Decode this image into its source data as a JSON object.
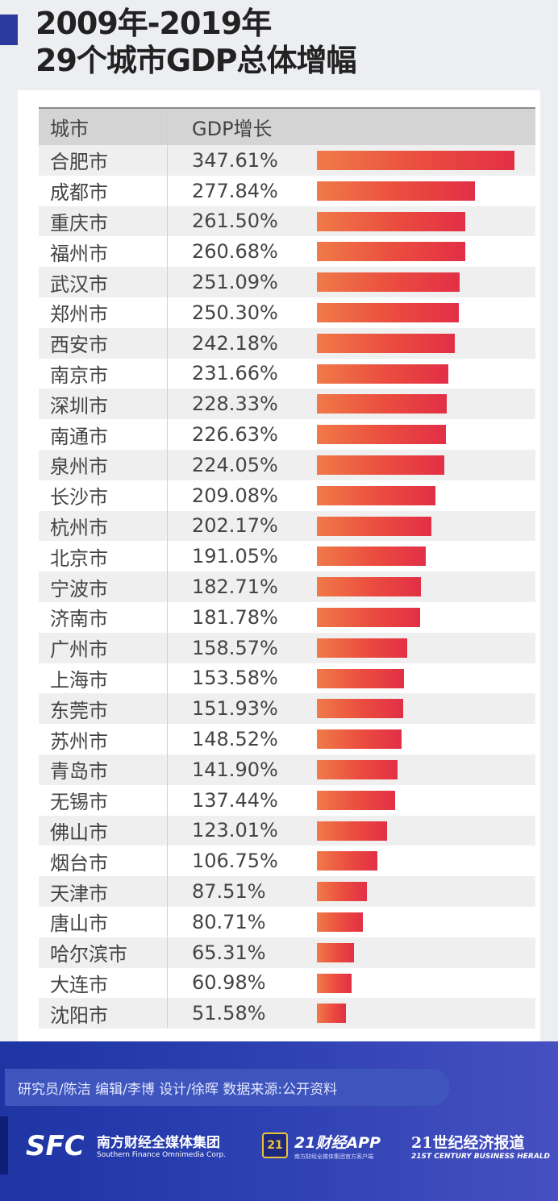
{
  "title": {
    "line1": "2009年-2019年",
    "line2": "29个城市GDP总体增幅"
  },
  "table": {
    "col_city": "城市",
    "col_growth": "GDP增长"
  },
  "chart_data": {
    "type": "bar",
    "title": "2009年-2019年 29个城市GDP总体增幅",
    "ylabel": "GDP增长",
    "categories": [
      "合肥市",
      "成都市",
      "重庆市",
      "福州市",
      "武汉市",
      "郑州市",
      "西安市",
      "南京市",
      "深圳市",
      "南通市",
      "泉州市",
      "长沙市",
      "杭州市",
      "北京市",
      "宁波市",
      "济南市",
      "广州市",
      "上海市",
      "东莞市",
      "苏州市",
      "青岛市",
      "无锡市",
      "佛山市",
      "烟台市",
      "天津市",
      "唐山市",
      "哈尔滨市",
      "大连市",
      "沈阳市"
    ],
    "labels": [
      "347.61%",
      "277.84%",
      "261.50%",
      "260.68%",
      "251.09%",
      "250.30%",
      "242.18%",
      "231.66%",
      "228.33%",
      "226.63%",
      "224.05%",
      "209.08%",
      "202.17%",
      "191.05%",
      "182.71%",
      "181.78%",
      "158.57%",
      "153.58%",
      "151.93%",
      "148.52%",
      "141.90%",
      "137.44%",
      "123.01%",
      "106.75%",
      "87.51%",
      "80.71%",
      "65.31%",
      "60.98%",
      "51.58%"
    ],
    "values": [
      347.61,
      277.84,
      261.5,
      260.68,
      251.09,
      250.3,
      242.18,
      231.66,
      228.33,
      226.63,
      224.05,
      209.08,
      202.17,
      191.05,
      182.71,
      181.78,
      158.57,
      153.58,
      151.93,
      148.52,
      141.9,
      137.44,
      123.01,
      106.75,
      87.51,
      80.71,
      65.31,
      60.98,
      51.58
    ],
    "colors": {
      "bar_start": "#f07a48",
      "bar_end": "#e22f46"
    }
  },
  "footer": {
    "credits": "研究员/陈洁 编辑/李博 设计/徐晖 数据来源:公开资料",
    "sfc_logo": "SFC",
    "sfc_name_cn": "南方财经全媒体集团",
    "sfc_name_en": "Southern Finance Omnimedia Corp.",
    "app_badge": "21",
    "app_name": "21财经APP",
    "app_sub": "南方财经全媒体集团官方客户端",
    "herald_cn": "21世纪经济报道",
    "herald_en": "21ST CENTURY BUSINESS HERALD"
  }
}
